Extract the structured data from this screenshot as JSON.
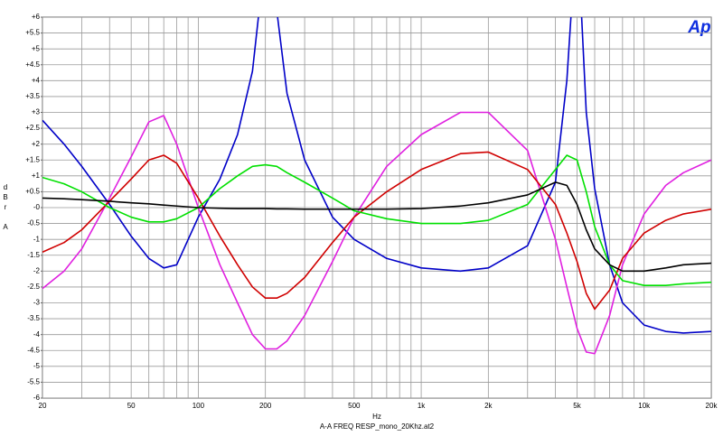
{
  "chart_data": {
    "type": "line",
    "logo": "Ap",
    "xlabel": "Hz",
    "ylabel": "dBr A",
    "caption": "A-A FREQ RESP_mono_20Khz.at2",
    "xscale": "log",
    "grid": true,
    "xlim": [
      20,
      20000
    ],
    "ylim": [
      -6,
      6
    ],
    "xticks": [
      20,
      50,
      100,
      200,
      500,
      {
        "value": 1000,
        "label": "1k"
      },
      {
        "value": 2000,
        "label": "2k"
      },
      {
        "value": 5000,
        "label": "5k"
      },
      {
        "value": 10000,
        "label": "10k"
      },
      {
        "value": 20000,
        "label": "20k"
      }
    ],
    "x_minor_ticks": [
      30,
      40,
      60,
      70,
      80,
      90,
      300,
      400,
      600,
      700,
      800,
      900,
      3000,
      4000,
      6000,
      7000,
      8000,
      9000
    ],
    "yticks": [
      -6,
      -5.5,
      -5,
      -4.5,
      -4,
      -3.5,
      -3,
      -2.5,
      -2,
      -1.5,
      -1,
      -0.5,
      {
        "value": 0,
        "label": "-0"
      },
      {
        "value": 0.5,
        "label": "+0.5"
      },
      {
        "value": 1,
        "label": "+1"
      },
      {
        "value": 1.5,
        "label": "+1.5"
      },
      {
        "value": 2,
        "label": "+2"
      },
      {
        "value": 2.5,
        "label": "+2.5"
      },
      {
        "value": 3,
        "label": "+3"
      },
      {
        "value": 3.5,
        "label": "+3.5"
      },
      {
        "value": 4,
        "label": "+4"
      },
      {
        "value": 4.5,
        "label": "+4.5"
      },
      {
        "value": 5,
        "label": "+5"
      },
      {
        "value": 5.5,
        "label": "+5.5"
      },
      {
        "value": 6,
        "label": "+6"
      }
    ],
    "x": [
      20,
      25,
      30,
      40,
      50,
      60,
      70,
      80,
      100,
      125,
      150,
      175,
      200,
      225,
      250,
      300,
      400,
      500,
      700,
      1000,
      1500,
      2000,
      3000,
      4000,
      4500,
      5000,
      5500,
      6000,
      7000,
      8000,
      10000,
      12500,
      15000,
      20000
    ],
    "series": [
      {
        "color": "#0000c8",
        "values": [
          2.75,
          2.0,
          1.3,
          0.1,
          -0.9,
          -1.6,
          -1.9,
          -1.8,
          -0.3,
          0.9,
          2.3,
          4.3,
          8,
          6.2,
          3.6,
          1.5,
          -0.3,
          -1.0,
          -1.6,
          -1.9,
          -2.0,
          -1.9,
          -1.2,
          0.8,
          4,
          9,
          3,
          0.6,
          -1.8,
          -3.0,
          -3.7,
          -3.9,
          -3.95,
          -3.9
        ]
      },
      {
        "color": "#e020e0",
        "values": [
          -2.55,
          -2.0,
          -1.3,
          0.3,
          1.6,
          2.7,
          2.9,
          2.0,
          0.0,
          -1.8,
          -3.0,
          -4.0,
          -4.45,
          -4.45,
          -4.2,
          -3.4,
          -1.7,
          -0.3,
          1.3,
          2.3,
          3.0,
          3.0,
          1.8,
          -1.0,
          -2.5,
          -3.8,
          -4.55,
          -4.6,
          -3.4,
          -1.8,
          -0.2,
          0.7,
          1.1,
          1.5
        ]
      },
      {
        "color": "#d00000",
        "values": [
          -1.4,
          -1.1,
          -0.7,
          0.2,
          0.9,
          1.5,
          1.65,
          1.4,
          0.3,
          -0.9,
          -1.8,
          -2.5,
          -2.85,
          -2.85,
          -2.7,
          -2.2,
          -1.1,
          -0.3,
          0.5,
          1.2,
          1.7,
          1.75,
          1.2,
          0.1,
          -0.8,
          -1.7,
          -2.7,
          -3.2,
          -2.6,
          -1.6,
          -0.8,
          -0.4,
          -0.2,
          -0.05
        ]
      },
      {
        "color": "#00e000",
        "values": [
          0.95,
          0.75,
          0.5,
          0.0,
          -0.3,
          -0.45,
          -0.45,
          -0.35,
          0.0,
          0.6,
          1.0,
          1.3,
          1.35,
          1.3,
          1.1,
          0.8,
          0.3,
          -0.1,
          -0.35,
          -0.5,
          -0.5,
          -0.4,
          0.1,
          1.2,
          1.65,
          1.5,
          0.5,
          -0.6,
          -1.8,
          -2.3,
          -2.45,
          -2.45,
          -2.4,
          -2.35
        ]
      },
      {
        "color": "#000000",
        "values": [
          0.3,
          0.28,
          0.25,
          0.2,
          0.15,
          0.12,
          0.08,
          0.05,
          0.0,
          -0.02,
          -0.03,
          -0.03,
          -0.03,
          -0.04,
          -0.04,
          -0.05,
          -0.05,
          -0.05,
          -0.05,
          -0.03,
          0.05,
          0.15,
          0.4,
          0.8,
          0.7,
          0.1,
          -0.7,
          -1.3,
          -1.8,
          -2.0,
          -2.0,
          -1.9,
          -1.8,
          -1.75
        ]
      }
    ]
  }
}
